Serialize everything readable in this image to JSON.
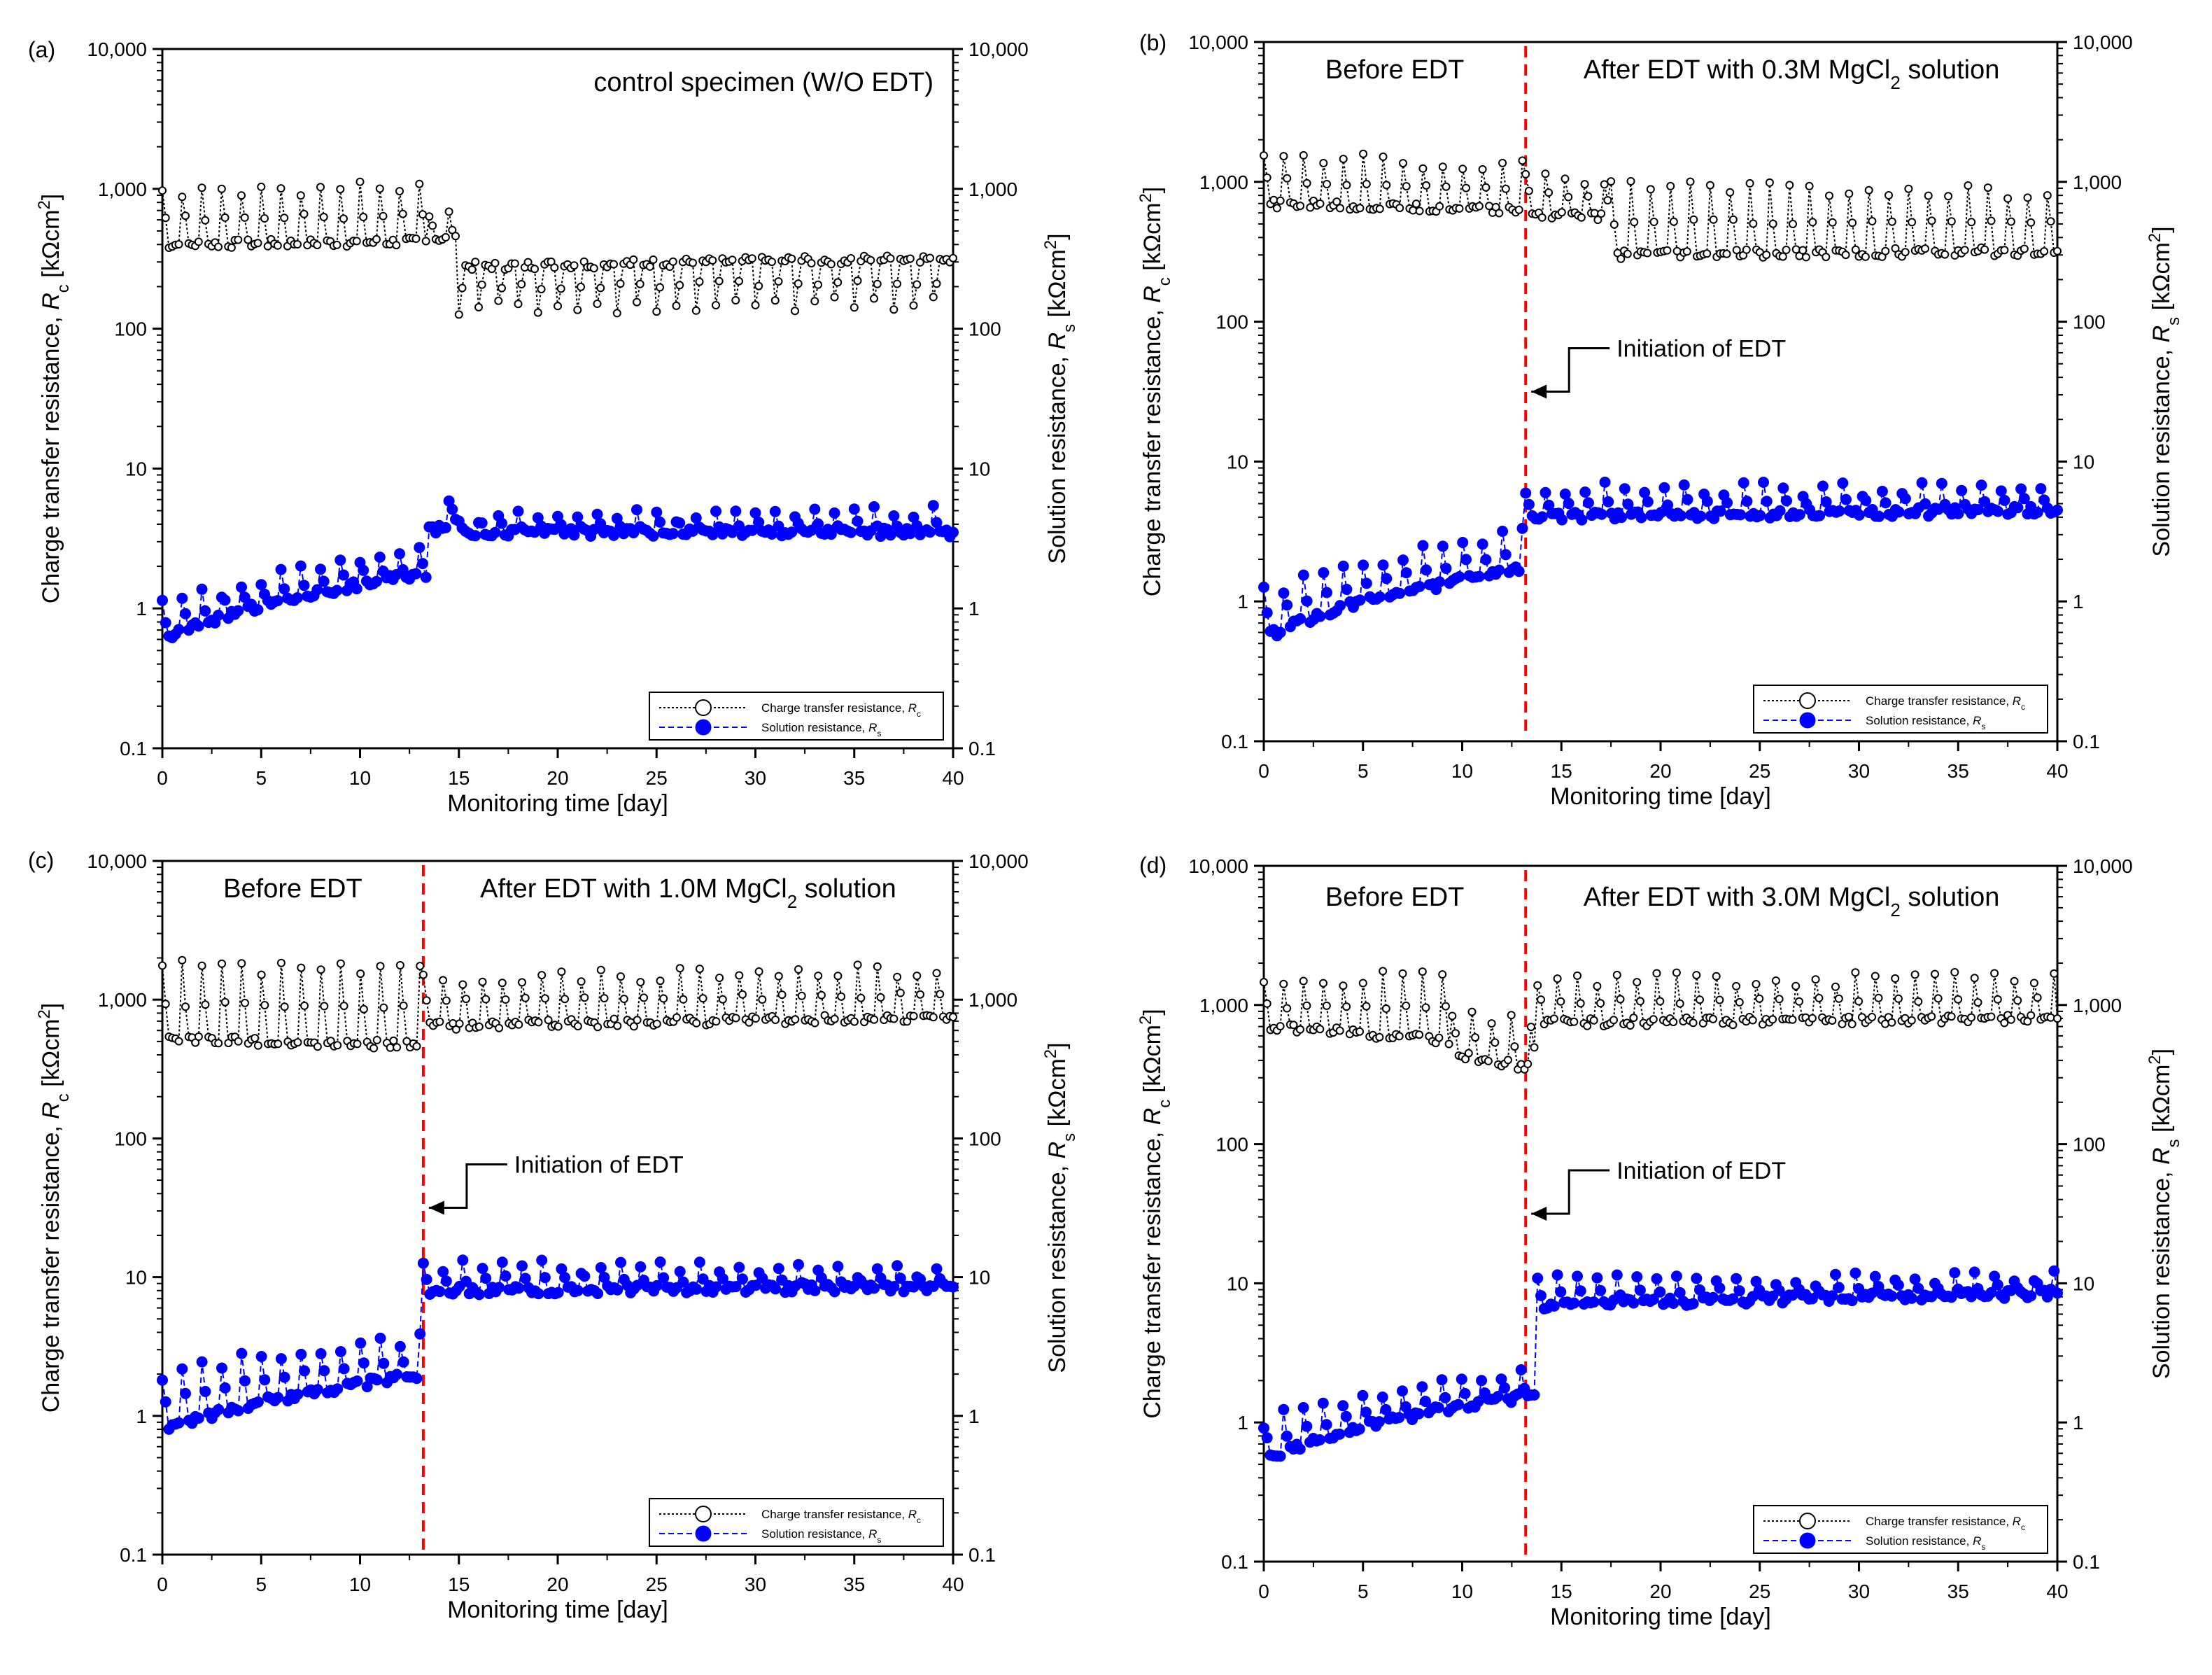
{
  "colors": {
    "rc_series": "#000000",
    "rs_series": "#0000ff",
    "edt_line": "#ff0000",
    "axis": "#000000",
    "background": "#ffffff"
  },
  "common": {
    "xlabel": "Monitoring time [day]",
    "ylabel_left_prefix": "Charge transfer resistance, ",
    "ylabel_left_var": "R",
    "ylabel_left_sub": "c",
    "ylabel_left_unit": " [kΩcm",
    "ylabel_right_prefix": "Solution resistance, ",
    "ylabel_right_var": "R",
    "ylabel_right_sub": "s",
    "ylabel_right_unit": " [kΩcm",
    "unit_sup": "2",
    "unit_close": "]",
    "legend_rc": "Charge transfer resistance, ",
    "legend_rs": "Solution resistance, ",
    "legend_rc_sub": "c",
    "legend_rs_sub": "s",
    "legend_var": "R",
    "edt_annotation": "Initiation of EDT",
    "before_label": "Before EDT"
  },
  "chart_data": [
    {
      "panel": "(a)",
      "type": "scatter",
      "title": "control specimen (W/O EDT)",
      "xlabel": "Monitoring time [day]",
      "ylabel": "Charge transfer resistance, Rc [kΩcm2]",
      "ylabel_right": "Solution resistance, Rs [kΩcm2]",
      "xlim": [
        0,
        40
      ],
      "ylim": [
        0.1,
        10000
      ],
      "yscale": "log",
      "x_ticks": [
        "0",
        "5",
        "10",
        "15",
        "20",
        "25",
        "30",
        "35",
        "40"
      ],
      "y_ticks": [
        "0.1",
        "1",
        "10",
        "100",
        "1,000",
        "10,000"
      ],
      "edt_day": null,
      "series": [
        {
          "name": "Charge transfer resistance, Rc",
          "x_range": [
            0,
            40
          ],
          "segments": [
            {
              "x_start": 0,
              "x_end": 13.5,
              "base_start": 400,
              "base_end": 420,
              "peak_start": 950,
              "peak_end": 1000
            },
            {
              "x_start": 13.5,
              "x_end": 15,
              "base_start": 450,
              "base_end": 430,
              "peak_start": 700,
              "peak_end": 600
            },
            {
              "x_start": 15,
              "x_end": 40,
              "base_start": 280,
              "base_end": 320,
              "peak_start": 140,
              "peak_end": 150
            }
          ]
        },
        {
          "name": "Solution resistance, Rs",
          "x_range": [
            0,
            40
          ],
          "segments": [
            {
              "x_start": 0,
              "x_end": 13.5,
              "base_start": 0.6,
              "base_end": 1.8,
              "peak_start": 1.0,
              "peak_end": 2.5
            },
            {
              "x_start": 13.5,
              "x_end": 15,
              "base_start": 3.5,
              "base_end": 4.5,
              "peak_start": 4.0,
              "peak_end": 6.5
            },
            {
              "x_start": 15,
              "x_end": 40,
              "base_start": 3.5,
              "base_end": 3.5,
              "peak_start": 4.3,
              "peak_end": 4.8
            }
          ]
        }
      ]
    },
    {
      "panel": "(b)",
      "type": "scatter",
      "before_label": "Before EDT",
      "after_label_pre": "After EDT with 0.3M MgCl",
      "after_label_post": " solution",
      "xlabel": "Monitoring time [day]",
      "ylabel": "Charge transfer resistance, Rc [kΩcm2]",
      "ylabel_right": "Solution resistance, Rs [kΩcm2]",
      "xlim": [
        0,
        40
      ],
      "ylim": [
        0.1,
        10000
      ],
      "yscale": "log",
      "x_ticks": [
        "0",
        "5",
        "10",
        "15",
        "20",
        "25",
        "30",
        "35",
        "40"
      ],
      "y_ticks": [
        "0.1",
        "1",
        "10",
        "100",
        "1,000",
        "10,000"
      ],
      "edt_day": 13.2,
      "annotation": "Initiation of EDT",
      "series": [
        {
          "name": "Charge transfer resistance, Rc",
          "x_range": [
            0,
            40
          ],
          "segments": [
            {
              "x_start": 0,
              "x_end": 13.2,
              "base_start": 700,
              "base_end": 620,
              "peak_start": 1500,
              "peak_end": 1300
            },
            {
              "x_start": 13.2,
              "x_end": 17.5,
              "base_start": 600,
              "base_end": 550,
              "peak_start": 1200,
              "peak_end": 1000
            },
            {
              "x_start": 17.5,
              "x_end": 40,
              "base_start": 300,
              "base_end": 320,
              "peak_start": 900,
              "peak_end": 800
            }
          ]
        },
        {
          "name": "Solution resistance, Rs",
          "x_range": [
            0,
            40
          ],
          "segments": [
            {
              "x_start": 0,
              "x_end": 13.2,
              "base_start": 0.55,
              "base_end": 1.7,
              "peak_start": 1.1,
              "peak_end": 3.0
            },
            {
              "x_start": 13.2,
              "x_end": 40,
              "base_start": 4.0,
              "base_end": 4.5,
              "peak_start": 6.5,
              "peak_end": 6.0
            }
          ]
        }
      ]
    },
    {
      "panel": "(c)",
      "type": "scatter",
      "before_label": "Before EDT",
      "after_label_pre": "After EDT with 1.0M MgCl",
      "after_label_post": " solution",
      "xlabel": "Monitoring time [day]",
      "ylabel": "Charge transfer resistance, Rc [kΩcm2]",
      "ylabel_right": "Solution resistance, Rs [kΩcm2]",
      "xlim": [
        0,
        40
      ],
      "ylim": [
        0.1,
        10000
      ],
      "yscale": "log",
      "x_ticks": [
        "0",
        "5",
        "10",
        "15",
        "20",
        "25",
        "30",
        "35",
        "40"
      ],
      "y_ticks": [
        "0.1",
        "1",
        "10",
        "100",
        "1,000",
        "10,000"
      ],
      "edt_day": 13.2,
      "annotation": "Initiation of EDT",
      "series": [
        {
          "name": "Charge transfer resistance, Rc",
          "x_range": [
            0,
            40
          ],
          "segments": [
            {
              "x_start": 0,
              "x_end": 13.2,
              "base_start": 520,
              "base_end": 470,
              "peak_start": 1700,
              "peak_end": 1600
            },
            {
              "x_start": 13.2,
              "x_end": 40,
              "base_start": 650,
              "base_end": 750,
              "peak_start": 1400,
              "peak_end": 1600
            }
          ]
        },
        {
          "name": "Solution resistance, Rs",
          "x_range": [
            0,
            40
          ],
          "segments": [
            {
              "x_start": 0,
              "x_end": 13.2,
              "base_start": 0.8,
              "base_end": 2.0,
              "peak_start": 2.0,
              "peak_end": 3.5
            },
            {
              "x_start": 13.2,
              "x_end": 40,
              "base_start": 8.0,
              "base_end": 8.5,
              "peak_start": 12.0,
              "peak_end": 10.5
            }
          ]
        }
      ]
    },
    {
      "panel": "(d)",
      "type": "scatter",
      "before_label": "Before EDT",
      "after_label_pre": "After EDT with 3.0M MgCl",
      "after_label_post": " solution",
      "xlabel": "Monitoring time [day]",
      "ylabel": "Charge transfer resistance, Rc [kΩcm2]",
      "ylabel_right": "Solution resistance, Rs [kΩcm2]",
      "xlim": [
        0,
        40
      ],
      "ylim": [
        0.1,
        10000
      ],
      "yscale": "log",
      "x_ticks": [
        "0",
        "5",
        "10",
        "15",
        "20",
        "25",
        "30",
        "35",
        "40"
      ],
      "y_ticks": [
        "0.1",
        "1",
        "10",
        "100",
        "1,000",
        "10,000"
      ],
      "edt_day": 13.2,
      "annotation": "Initiation of EDT",
      "series": [
        {
          "name": "Charge transfer resistance, Rc",
          "x_range": [
            0,
            40
          ],
          "segments": [
            {
              "x_start": 0,
              "x_end": 9.5,
              "base_start": 700,
              "base_end": 550,
              "peak_start": 1400,
              "peak_end": 1600
            },
            {
              "x_start": 9.5,
              "x_end": 13.8,
              "base_start": 450,
              "base_end": 340,
              "peak_start": 900,
              "peak_end": 700
            },
            {
              "x_start": 13.8,
              "x_end": 40,
              "base_start": 750,
              "base_end": 800,
              "peak_start": 1500,
              "peak_end": 1500
            }
          ]
        },
        {
          "name": "Solution resistance, Rs",
          "x_range": [
            0,
            40
          ],
          "segments": [
            {
              "x_start": 0,
              "x_end": 13.8,
              "base_start": 0.55,
              "base_end": 1.6,
              "peak_start": 1.0,
              "peak_end": 2.2
            },
            {
              "x_start": 13.8,
              "x_end": 40,
              "base_start": 7.0,
              "base_end": 8.5,
              "peak_start": 10.0,
              "peak_end": 11.0
            }
          ]
        }
      ]
    }
  ]
}
